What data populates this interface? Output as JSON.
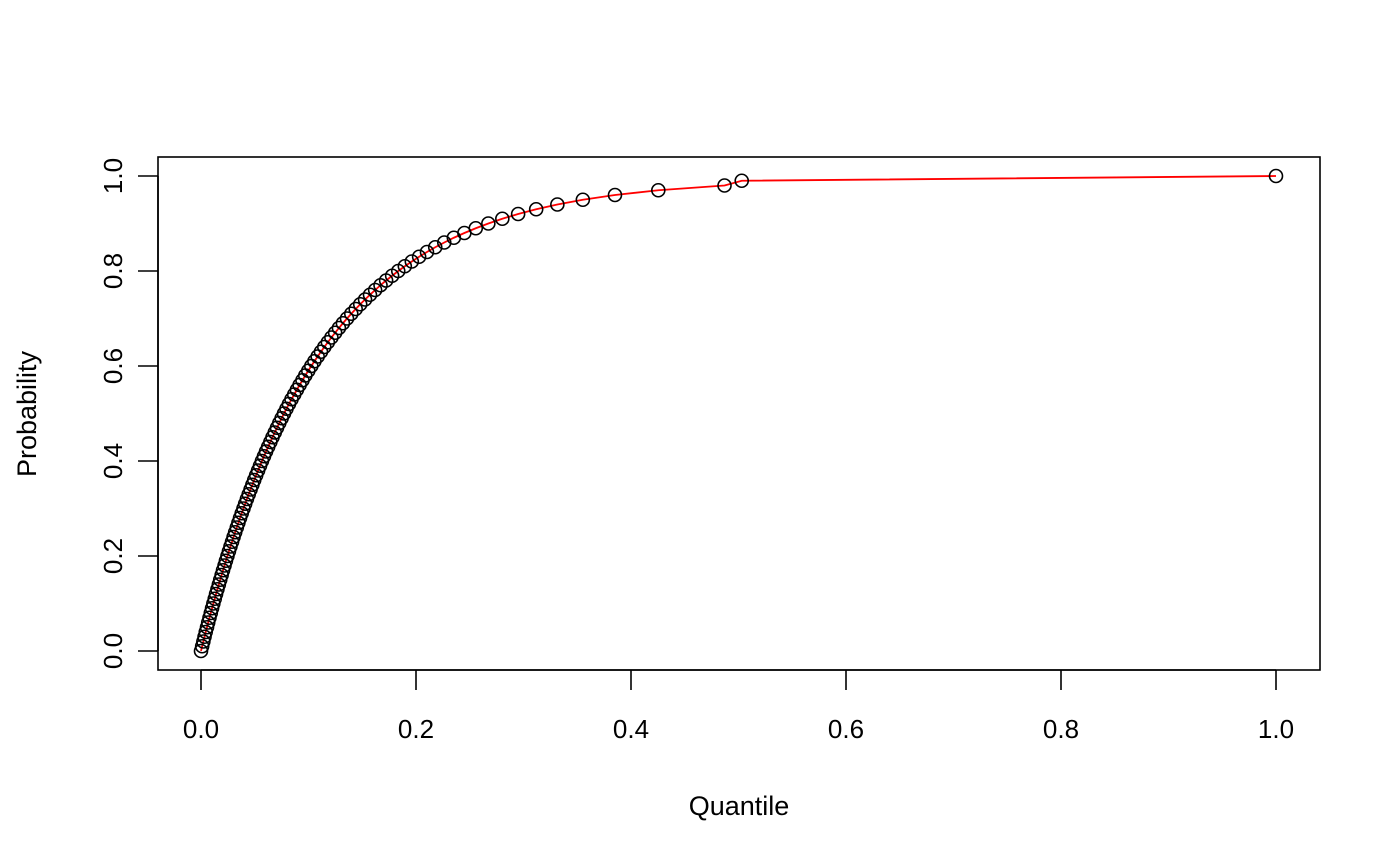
{
  "chart_data": {
    "type": "scatter",
    "title": "",
    "xlabel": "Quantile",
    "ylabel": "Probability",
    "xlim": [
      0,
      1
    ],
    "ylim": [
      0,
      1
    ],
    "x_ticks": [
      "0.0",
      "0.2",
      "0.4",
      "0.6",
      "0.8",
      "1.0"
    ],
    "y_ticks": [
      "0.0",
      "0.2",
      "0.4",
      "0.6",
      "0.8",
      "1.0"
    ],
    "grid": false,
    "legend": "none",
    "point_color": "#000000",
    "line_color": "#ff0000",
    "series": [
      {
        "kind": "points",
        "marker": "open-circle",
        "p": [
          0.0,
          0.01,
          0.02,
          0.03,
          0.04,
          0.05,
          0.06,
          0.07,
          0.08,
          0.09,
          0.1,
          0.11,
          0.12,
          0.13,
          0.14,
          0.15,
          0.16,
          0.17,
          0.18,
          0.19,
          0.2,
          0.21,
          0.22,
          0.23,
          0.24,
          0.25,
          0.26,
          0.27,
          0.28,
          0.29,
          0.3,
          0.31,
          0.32,
          0.33,
          0.34,
          0.35,
          0.36,
          0.37,
          0.38,
          0.39,
          0.4,
          0.41,
          0.42,
          0.43,
          0.44,
          0.45,
          0.46,
          0.47,
          0.48,
          0.49,
          0.5,
          0.51,
          0.52,
          0.53,
          0.54,
          0.55,
          0.56,
          0.57,
          0.58,
          0.59,
          0.6,
          0.61,
          0.62,
          0.63,
          0.64,
          0.65,
          0.66,
          0.67,
          0.68,
          0.69,
          0.7,
          0.71,
          0.72,
          0.73,
          0.74,
          0.75,
          0.76,
          0.77,
          0.78,
          0.79,
          0.8,
          0.81,
          0.82,
          0.83,
          0.84,
          0.85,
          0.86,
          0.87,
          0.88,
          0.89,
          0.9,
          0.91,
          0.92,
          0.93,
          0.94,
          0.95,
          0.96,
          0.97,
          0.98,
          0.99,
          1.0
        ],
        "q": [
          0.0,
          0.0011,
          0.0022,
          0.0033,
          0.0044,
          0.0056,
          0.0067,
          0.0079,
          0.0091,
          0.0103,
          0.0115,
          0.0128,
          0.014,
          0.0153,
          0.0166,
          0.0179,
          0.0192,
          0.0205,
          0.0219,
          0.0232,
          0.0246,
          0.026,
          0.0274,
          0.0289,
          0.0303,
          0.0318,
          0.0333,
          0.0348,
          0.0363,
          0.0379,
          0.0395,
          0.0411,
          0.0427,
          0.0444,
          0.0461,
          0.0478,
          0.0495,
          0.0513,
          0.0531,
          0.0549,
          0.0567,
          0.0586,
          0.0605,
          0.0625,
          0.0645,
          0.0665,
          0.0686,
          0.0707,
          0.0728,
          0.075,
          0.0772,
          0.0795,
          0.0818,
          0.0842,
          0.0867,
          0.0892,
          0.0917,
          0.0944,
          0.097,
          0.0998,
          0.1026,
          0.1055,
          0.1085,
          0.1116,
          0.1147,
          0.118,
          0.1213,
          0.1248,
          0.1283,
          0.132,
          0.1358,
          0.1398,
          0.1439,
          0.1481,
          0.1526,
          0.1572,
          0.162,
          0.167,
          0.1722,
          0.1778,
          0.1835,
          0.1896,
          0.1961,
          0.2029,
          0.2102,
          0.2179,
          0.2263,
          0.2352,
          0.245,
          0.2556,
          0.2673,
          0.2803,
          0.295,
          0.3118,
          0.3315,
          0.3552,
          0.3851,
          0.4254,
          0.487,
          0.503,
          1.0
        ]
      },
      {
        "kind": "line",
        "curve": "cdf",
        "note_visible": false
      }
    ]
  }
}
